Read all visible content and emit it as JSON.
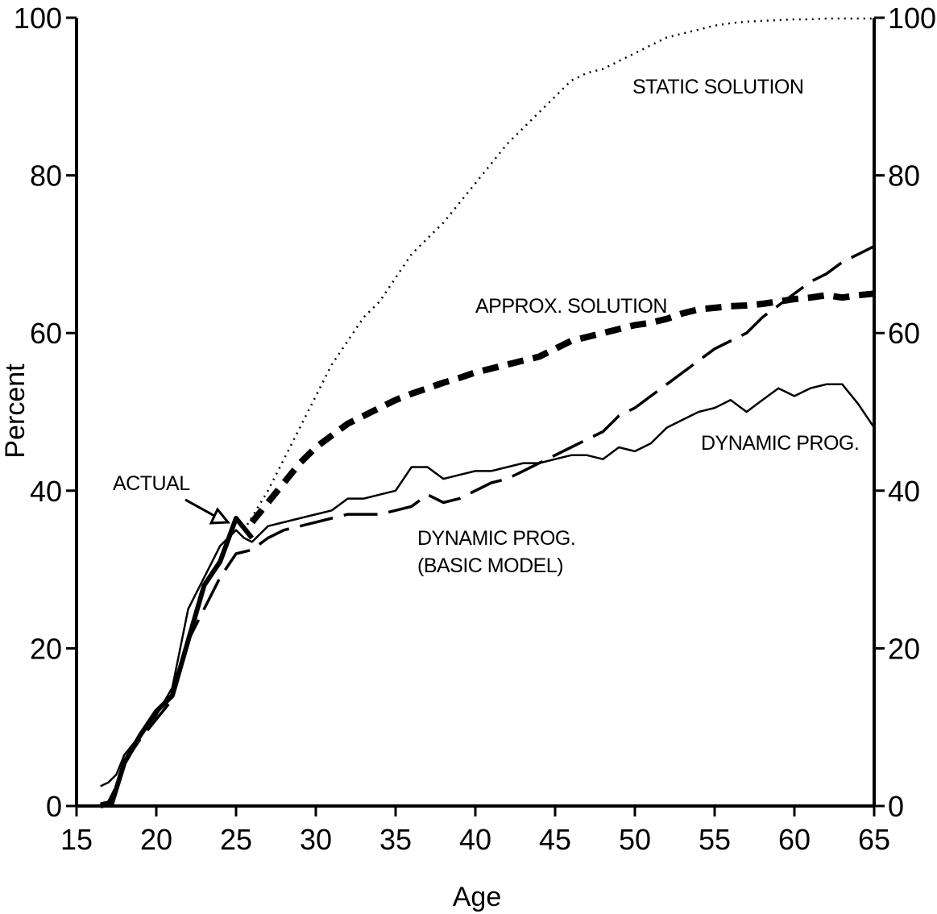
{
  "chart_data": {
    "type": "line",
    "title": "",
    "xlabel": "Age",
    "ylabel": "Percent",
    "xlim": [
      15,
      65
    ],
    "ylim": [
      0,
      100
    ],
    "x_ticks": [
      15,
      20,
      25,
      30,
      35,
      40,
      45,
      50,
      55,
      60,
      65
    ],
    "y_ticks": [
      0,
      20,
      40,
      60,
      80,
      100
    ],
    "right_axis_ticks": [
      0,
      20,
      40,
      60,
      80,
      100
    ],
    "grid": false,
    "legend": "none",
    "annotations": {
      "actual": "ACTUAL",
      "static": "STATIC SOLUTION",
      "approx": "APPROX. SOLUTION",
      "dynamic": "DYNAMIC PROG.",
      "basic_line1": "DYNAMIC PROG.",
      "basic_line2": "(BASIC MODEL)"
    },
    "series": [
      {
        "key": "actual",
        "style": "solid-thick",
        "x": [
          16.5,
          17.2,
          18,
          19,
          20,
          21,
          22,
          23,
          24,
          25,
          25.6,
          26
        ],
        "y": [
          0,
          0.3,
          5.5,
          9,
          12,
          14,
          21,
          28,
          31,
          36.5,
          35,
          34
        ]
      },
      {
        "key": "static",
        "style": "dotted",
        "x": [
          25.5,
          27,
          28,
          29,
          30,
          31,
          32,
          33,
          34,
          35,
          36,
          37,
          38,
          39,
          40,
          41,
          42,
          43,
          44,
          45,
          46,
          47,
          48,
          49,
          50,
          51,
          52,
          53,
          54,
          55,
          56,
          57,
          58,
          59,
          60,
          61,
          62,
          63,
          64,
          65
        ],
        "y": [
          35,
          40,
          44,
          48,
          52,
          56,
          59,
          62,
          64,
          67,
          70,
          72,
          74,
          76.5,
          79,
          81.5,
          84,
          86,
          88,
          90,
          92,
          93,
          93.5,
          94.5,
          95.5,
          96.5,
          97.5,
          98,
          98.5,
          99,
          99.3,
          99.5,
          99.6,
          99.7,
          99.8,
          99.8,
          99.9,
          99.9,
          99.9,
          99.9
        ]
      },
      {
        "key": "approx",
        "style": "dashed-thick",
        "x": [
          26,
          27,
          28,
          29,
          30,
          31,
          32,
          33,
          34,
          35,
          36,
          37,
          38,
          39,
          40,
          41,
          42,
          43,
          44,
          45,
          46,
          47,
          48,
          49,
          50,
          51,
          52,
          53,
          54,
          55,
          56,
          57,
          58,
          59,
          60,
          61,
          62,
          63,
          64,
          65
        ],
        "y": [
          36,
          38.5,
          41,
          43.5,
          45.5,
          47,
          48.5,
          49.5,
          50.5,
          51.5,
          52.3,
          53,
          53.7,
          54.3,
          55,
          55.5,
          56,
          56.5,
          57,
          58,
          59,
          59.5,
          60,
          60.5,
          61,
          61.3,
          61.8,
          62.5,
          63,
          63.2,
          63.4,
          63.5,
          63.7,
          64,
          64.3,
          64.5,
          64.8,
          64.5,
          64.8,
          65
        ]
      },
      {
        "key": "dynamic",
        "style": "solid-thin",
        "x": [
          16.5,
          17,
          17.5,
          18,
          19,
          20,
          21,
          22,
          23,
          24,
          25,
          25.5,
          26,
          27,
          28,
          29,
          30,
          31,
          32,
          33,
          34,
          35,
          36,
          37,
          38,
          39,
          40,
          41,
          42,
          43,
          44,
          45,
          46,
          47,
          48,
          49,
          50,
          51,
          52,
          53,
          54,
          55,
          56,
          57,
          58,
          59,
          60,
          61,
          62,
          63,
          64,
          65
        ],
        "y": [
          2.5,
          3,
          4,
          6.5,
          9,
          11.5,
          15,
          25,
          29,
          33,
          35,
          34,
          33.5,
          35.5,
          36,
          36.5,
          37,
          37.5,
          39,
          39,
          39.5,
          40,
          43,
          43,
          41.5,
          42,
          42.5,
          42.5,
          43,
          43.5,
          43.5,
          44,
          44.5,
          44.5,
          44,
          45.5,
          45,
          46,
          48,
          49,
          50,
          50.5,
          51.5,
          50,
          51.5,
          53,
          52,
          53,
          53.5,
          53.5,
          51,
          48
        ]
      },
      {
        "key": "basic",
        "style": "long-dash",
        "x": [
          16.5,
          17,
          17.5,
          18,
          19,
          20,
          21,
          22,
          23,
          24,
          25,
          26,
          27,
          28,
          29,
          30,
          31,
          32,
          33,
          34,
          35,
          36,
          37,
          38,
          39,
          40,
          41,
          42,
          43,
          44,
          45,
          46,
          47,
          48,
          49,
          50,
          51,
          52,
          53,
          54,
          55,
          56,
          57,
          58,
          59,
          60,
          61,
          62,
          63,
          64,
          65
        ],
        "y": [
          0.3,
          0.5,
          2.5,
          5.5,
          8.5,
          11,
          13.5,
          21,
          25,
          29,
          32,
          32.5,
          34,
          35,
          35.5,
          36,
          36.5,
          37,
          37,
          37,
          37.5,
          38,
          39.5,
          38.5,
          39,
          40,
          41,
          41.5,
          42.5,
          43.5,
          44.5,
          45.5,
          46.5,
          47.5,
          49.5,
          50.5,
          52,
          53.5,
          55,
          56.5,
          58,
          59,
          60,
          62,
          63.5,
          65,
          66.5,
          67.5,
          69,
          70,
          71
        ]
      }
    ]
  }
}
